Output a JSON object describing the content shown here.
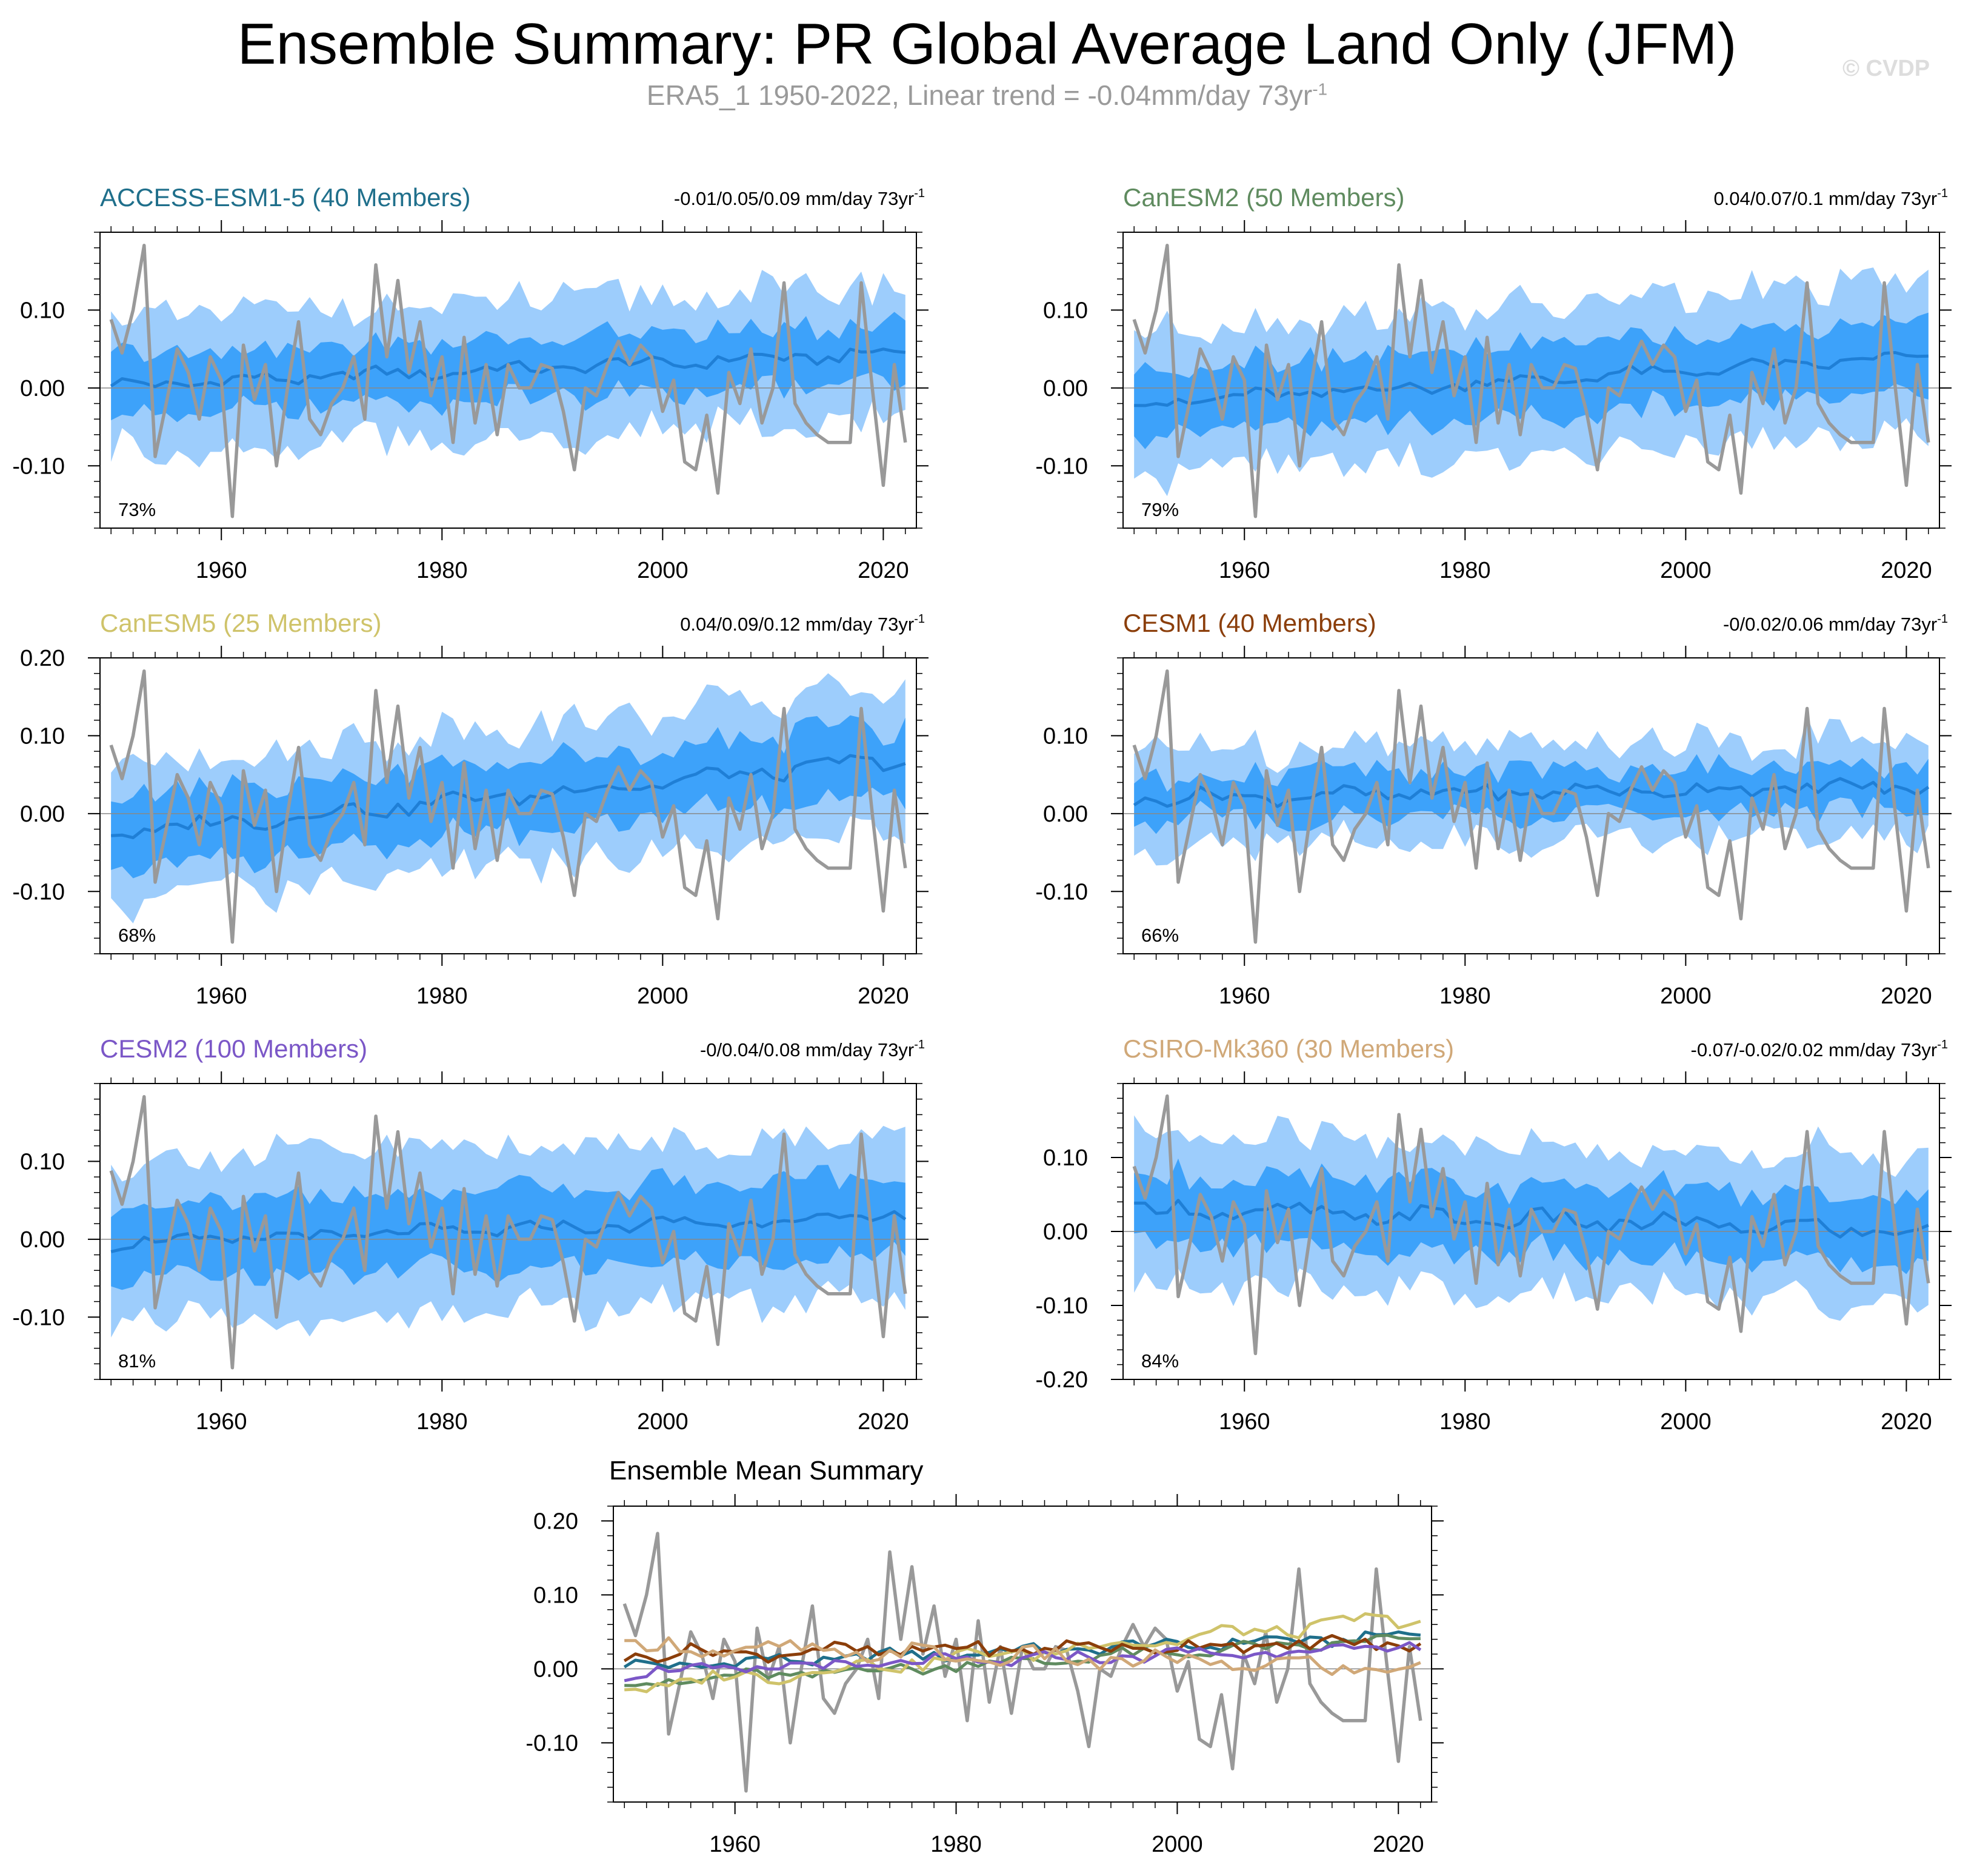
{
  "page": {
    "title": "Ensemble Summary: PR Global Average Land Only (JFM)",
    "subtitle_main": "ERA5_1 1950-2022, Linear trend = -0.04mm/day 73yr",
    "subtitle_sup": "-1",
    "watermark": "© CVDP"
  },
  "colors": {
    "outer_band": "#9dcdfc",
    "inner_band": "#3da2fa",
    "ensemble_mean": "#1f7fd6",
    "observations": "#999999",
    "zero_line": "#888888"
  },
  "chart_data": [
    {
      "type": "area",
      "title": "ACCESS-ESM1-5 (40 Members)",
      "title_color": "#1f6f8b",
      "trend_text": "-0.01/0.05/0.09 mm/day 73yr",
      "trend_sup": "-1",
      "percent_label": "73%",
      "x_start": 1950,
      "xlim": [
        1949,
        2023
      ],
      "ylim": [
        -0.18,
        0.2
      ],
      "yticks": [
        -0.1,
        0.0,
        0.1
      ],
      "ytick_labels": [
        "-0.10",
        "0.00",
        "0.10"
      ],
      "xticks": [
        1960,
        1980,
        2000,
        2020
      ],
      "xtick_labels": [
        "1960",
        "1980",
        "2000",
        "2020"
      ],
      "mean_start": 0.003,
      "mean_end": 0.045,
      "mean_amp": 0.012,
      "inner_half": 0.038,
      "outer_half": 0.085
    },
    {
      "type": "area",
      "title": "CanESM2 (50 Members)",
      "title_color": "#5f8b5f",
      "trend_text": "0.04/0.07/0.1 mm/day 73yr",
      "trend_sup": "-1",
      "percent_label": "79%",
      "x_start": 1950,
      "xlim": [
        1949,
        2023
      ],
      "ylim": [
        -0.18,
        0.2
      ],
      "yticks": [
        -0.1,
        0.0,
        0.1
      ],
      "ytick_labels": [
        "-0.10",
        "0.00",
        "0.10"
      ],
      "xticks": [
        1960,
        1980,
        2000,
        2020
      ],
      "xtick_labels": [
        "1960",
        "1980",
        "2000",
        "2020"
      ],
      "mean_start": -0.02,
      "mean_end": 0.04,
      "mean_amp": 0.012,
      "inner_half": 0.045,
      "outer_half": 0.095
    },
    {
      "type": "area",
      "title": "CanESM5 (25 Members)",
      "title_color": "#cfc36a",
      "trend_text": "0.04/0.09/0.12 mm/day 73yr",
      "trend_sup": "-1",
      "percent_label": "68%",
      "x_start": 1950,
      "xlim": [
        1949,
        2023
      ],
      "ylim": [
        -0.18,
        0.2
      ],
      "yticks": [
        -0.1,
        0.0,
        0.1,
        0.2
      ],
      "ytick_labels": [
        "-0.10",
        "0.00",
        "0.10",
        "0.20"
      ],
      "xticks": [
        1960,
        1980,
        2000,
        2020
      ],
      "xtick_labels": [
        "1960",
        "1980",
        "2000",
        "2020"
      ],
      "mean_start": -0.025,
      "mean_end": 0.07,
      "mean_amp": 0.015,
      "inner_half": 0.045,
      "outer_half": 0.09
    },
    {
      "type": "area",
      "title": "CESM1 (40 Members)",
      "title_color": "#8b3e0a",
      "trend_text": "-0/0.02/0.06 mm/day 73yr",
      "trend_sup": "-1",
      "percent_label": "66%",
      "x_start": 1950,
      "xlim": [
        1949,
        2023
      ],
      "ylim": [
        -0.18,
        0.2
      ],
      "yticks": [
        -0.1,
        0.0,
        0.1
      ],
      "ytick_labels": [
        "-0.10",
        "0.00",
        "0.10"
      ],
      "xticks": [
        1960,
        1980,
        2000,
        2020
      ],
      "xtick_labels": [
        "1960",
        "1980",
        "2000",
        "2020"
      ],
      "mean_start": 0.02,
      "mean_end": 0.035,
      "mean_amp": 0.014,
      "inner_half": 0.03,
      "outer_half": 0.065
    },
    {
      "type": "area",
      "title": "CESM2 (100 Members)",
      "title_color": "#7b57c7",
      "trend_text": "-0/0.04/0.08 mm/day 73yr",
      "trend_sup": "-1",
      "percent_label": "81%",
      "x_start": 1950,
      "xlim": [
        1949,
        2023
      ],
      "ylim": [
        -0.18,
        0.2
      ],
      "yticks": [
        -0.1,
        0.0,
        0.1
      ],
      "ytick_labels": [
        "-0.10",
        "0.00",
        "0.10"
      ],
      "xticks": [
        1960,
        1980,
        2000,
        2020
      ],
      "xtick_labels": [
        "1960",
        "1980",
        "2000",
        "2020"
      ],
      "mean_start": -0.005,
      "mean_end": 0.03,
      "mean_amp": 0.012,
      "inner_half": 0.05,
      "outer_half": 0.105
    },
    {
      "type": "area",
      "title": "CSIRO-Mk360 (30 Members)",
      "title_color": "#d0a878",
      "trend_text": "-0.07/-0.02/0.02 mm/day 73yr",
      "trend_sup": "-1",
      "percent_label": "84%",
      "x_start": 1950,
      "xlim": [
        1949,
        2023
      ],
      "ylim": [
        -0.2,
        0.2
      ],
      "yticks": [
        -0.2,
        -0.1,
        0.0,
        0.1
      ],
      "ytick_labels": [
        "-0.20",
        "-0.10",
        "0.00",
        "0.10"
      ],
      "xticks": [
        1960,
        1980,
        2000,
        2020
      ],
      "xtick_labels": [
        "1960",
        "1980",
        "2000",
        "2020"
      ],
      "mean_start": 0.03,
      "mean_end": 0.0,
      "mean_amp": 0.018,
      "inner_half": 0.045,
      "outer_half": 0.1
    },
    {
      "type": "line",
      "title": "Ensemble Mean Summary",
      "x_start": 1950,
      "xlim": [
        1949,
        2023
      ],
      "ylim": [
        -0.18,
        0.22
      ],
      "yticks": [
        -0.1,
        0.0,
        0.1,
        0.2
      ],
      "ytick_labels": [
        "-0.10",
        "0.00",
        "0.10",
        "0.20"
      ],
      "xticks": [
        1960,
        1980,
        2000,
        2020
      ],
      "xtick_labels": [
        "1960",
        "1980",
        "2000",
        "2020"
      ],
      "series_colors": [
        "#1f6f8b",
        "#5f8b5f",
        "#cfc36a",
        "#8b3e0a",
        "#7b57c7",
        "#d0a878"
      ]
    }
  ],
  "observations": {
    "name": "ERA5_1",
    "years": [
      1950,
      2022
    ],
    "values": [
      0.088,
      0.045,
      0.1,
      0.183,
      -0.088,
      -0.02,
      0.05,
      0.02,
      -0.04,
      0.04,
      0.01,
      -0.165,
      0.055,
      -0.015,
      0.03,
      -0.1,
      0.0,
      0.085,
      -0.04,
      -0.06,
      -0.02,
      0.0,
      0.04,
      -0.04,
      0.158,
      0.04,
      0.138,
      0.02,
      0.085,
      -0.01,
      0.04,
      -0.07,
      0.065,
      -0.045,
      0.03,
      -0.06,
      0.03,
      0.0,
      0.0,
      0.03,
      0.025,
      -0.03,
      -0.105,
      0.0,
      -0.01,
      0.03,
      0.06,
      0.03,
      0.055,
      0.04,
      -0.03,
      0.01,
      -0.095,
      -0.105,
      -0.035,
      -0.135,
      0.02,
      -0.02,
      0.05,
      -0.045,
      0.0,
      0.135,
      -0.02,
      -0.045,
      -0.06,
      -0.07,
      -0.07,
      -0.07,
      0.135,
      0.0,
      -0.125,
      0.03,
      -0.07
    ]
  }
}
